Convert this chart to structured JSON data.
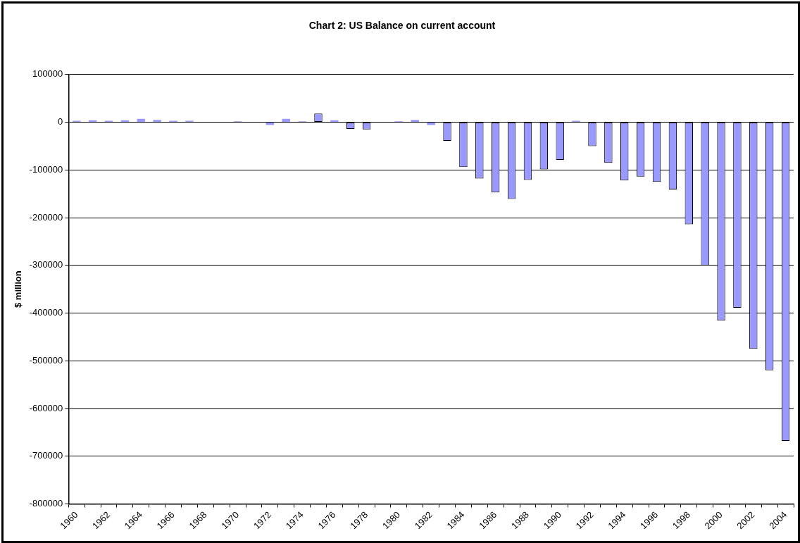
{
  "chart_data": {
    "type": "bar",
    "title": "Chart 2: US Balance on current account",
    "ylabel": "$ million",
    "categories": [
      "1960",
      null,
      "1962",
      null,
      "1964",
      null,
      "1966",
      null,
      "1968",
      null,
      "1970",
      null,
      "1972",
      null,
      "1974",
      null,
      "1976",
      null,
      "1978",
      null,
      "1980",
      null,
      "1982",
      null,
      "1984",
      null,
      "1986",
      null,
      "1988",
      null,
      "1990",
      null,
      "1992",
      null,
      "1994",
      null,
      "1996",
      null,
      "1998",
      null,
      "2000",
      null,
      "2002",
      null,
      "2004"
    ],
    "values": [
      3000,
      4000,
      3000,
      4000,
      7000,
      5000,
      3000,
      3000,
      null,
      null,
      2000,
      null,
      -6000,
      7000,
      2000,
      18000,
      4000,
      -14000,
      -15000,
      0,
      2000,
      5000,
      -6000,
      -39000,
      -94000,
      -118000,
      -147000,
      -161000,
      -121000,
      -99000,
      -79000,
      3000,
      -50000,
      -85000,
      -122000,
      -114000,
      -125000,
      -141000,
      -214000,
      -300000,
      -416000,
      -389000,
      -475000,
      -520000,
      -668000
    ],
    "color": "#9999ff",
    "ylim": [
      -800000,
      100000
    ],
    "yticks": [
      -800000,
      -700000,
      -600000,
      -500000,
      -400000,
      -300000,
      -200000,
      -100000,
      0,
      100000
    ],
    "grid": "y",
    "legend": false
  }
}
